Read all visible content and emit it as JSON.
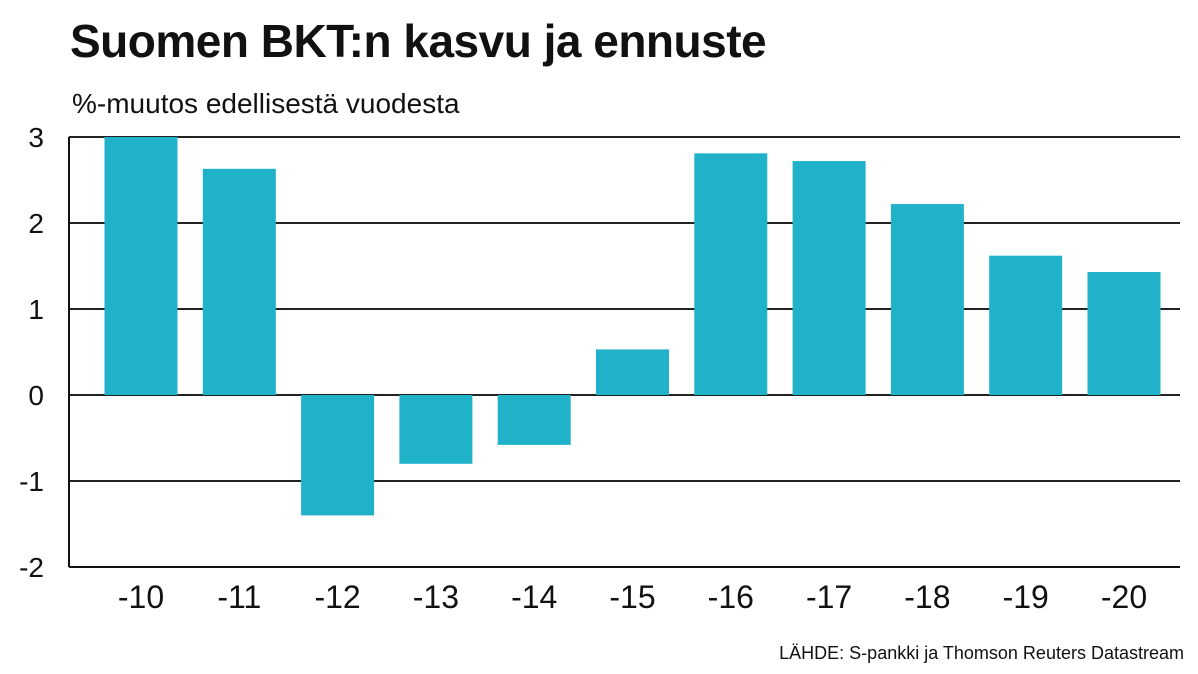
{
  "title": "Suomen BKT:n kasvu ja ennuste",
  "subtitle": "%-muutos edellisestä vuodesta",
  "source": "LÄHDE: S-pankki ja Thomson Reuters Datastream",
  "colors": {
    "bar": "#20B2C8",
    "grid": "#222222",
    "axis": "#111111"
  },
  "chart_data": {
    "type": "bar",
    "categories": [
      "-10",
      "-11",
      "-12",
      "-13",
      "-14",
      "-15",
      "-16",
      "-17",
      "-18",
      "-19",
      "-20"
    ],
    "values": [
      3.0,
      2.63,
      -1.4,
      -0.8,
      -0.58,
      0.53,
      2.81,
      2.72,
      2.22,
      1.62,
      1.43
    ],
    "y_ticks": [
      "3",
      "2",
      "1",
      "0",
      "-1",
      "-2"
    ],
    "ylim": [
      -2,
      3
    ],
    "grid": true,
    "title": "Suomen BKT:n kasvu ja ennuste",
    "xlabel": "",
    "ylabel": "%-muutos edellisestä vuodesta"
  }
}
